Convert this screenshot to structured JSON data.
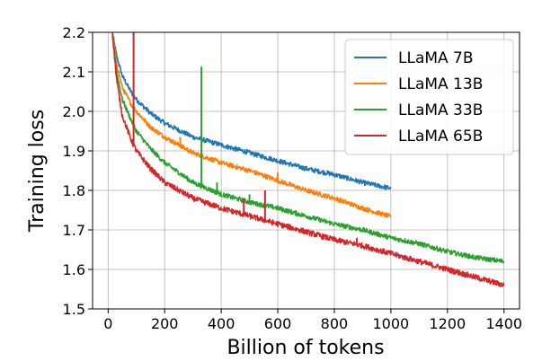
{
  "chart_data": {
    "type": "line",
    "title": "",
    "xlabel": "Billion of tokens",
    "ylabel": "Training loss",
    "xlim": [
      -55,
      1455
    ],
    "ylim": [
      1.5,
      2.2
    ],
    "xticks": [
      0,
      200,
      400,
      600,
      800,
      1000,
      1200,
      1400
    ],
    "yticks": [
      1.5,
      1.6,
      1.7,
      1.8,
      1.9,
      2.0,
      2.1,
      2.2
    ],
    "xtick_labels": [
      "0",
      "200",
      "400",
      "600",
      "800",
      "1000",
      "1200",
      "1400"
    ],
    "ytick_labels": [
      "1.5",
      "1.6",
      "1.7",
      "1.8",
      "1.9",
      "2.0",
      "2.1",
      "2.2"
    ],
    "grid": true,
    "legend_position": "top-right",
    "series": [
      {
        "name": "LLaMA 7B",
        "color": "#1f77b4",
        "x": [
          15,
          30,
          50,
          80,
          100,
          150,
          200,
          300,
          400,
          500,
          600,
          700,
          800,
          900,
          1000
        ],
        "y": [
          2.2,
          2.14,
          2.09,
          2.05,
          2.03,
          1.995,
          1.97,
          1.935,
          1.915,
          1.895,
          1.875,
          1.855,
          1.84,
          1.82,
          1.805
        ],
        "noise": 0.006,
        "spikes": []
      },
      {
        "name": "LLaMA 13B",
        "color": "#ff7f0e",
        "x": [
          15,
          30,
          50,
          80,
          100,
          150,
          200,
          300,
          400,
          500,
          600,
          700,
          800,
          900,
          1000
        ],
        "y": [
          2.2,
          2.12,
          2.06,
          2.02,
          2.0,
          1.96,
          1.935,
          1.895,
          1.87,
          1.85,
          1.825,
          1.8,
          1.78,
          1.755,
          1.733
        ],
        "noise": 0.006,
        "spikes": [
          [
            255,
            1.935
          ],
          [
            290,
            1.895
          ],
          [
            600,
            1.845
          ]
        ]
      },
      {
        "name": "LLaMA 33B",
        "color": "#2ca02c",
        "x": [
          15,
          30,
          50,
          80,
          100,
          150,
          200,
          300,
          400,
          500,
          600,
          700,
          800,
          900,
          1000,
          1100,
          1200,
          1300,
          1400
        ],
        "y": [
          2.2,
          2.1,
          2.03,
          1.98,
          1.95,
          1.905,
          1.87,
          1.82,
          1.79,
          1.77,
          1.755,
          1.735,
          1.715,
          1.7,
          1.68,
          1.665,
          1.645,
          1.63,
          1.62
        ],
        "noise": 0.006,
        "spikes": [
          [
            330,
            2.113
          ],
          [
            385,
            1.82
          ],
          [
            500,
            1.79
          ]
        ]
      },
      {
        "name": "LLaMA 65B",
        "color": "#d62728",
        "x": [
          15,
          30,
          50,
          80,
          100,
          150,
          200,
          300,
          400,
          500,
          600,
          700,
          800,
          900,
          1000,
          1100,
          1200,
          1300,
          1400
        ],
        "y": [
          2.2,
          2.08,
          1.99,
          1.93,
          1.9,
          1.855,
          1.82,
          1.78,
          1.755,
          1.735,
          1.715,
          1.695,
          1.675,
          1.66,
          1.64,
          1.62,
          1.6,
          1.58,
          1.56
        ],
        "noise": 0.007,
        "spikes": [
          [
            90,
            2.2
          ],
          [
            195,
            1.82
          ],
          [
            480,
            1.78
          ],
          [
            555,
            1.8
          ],
          [
            880,
            1.68
          ]
        ]
      }
    ]
  }
}
